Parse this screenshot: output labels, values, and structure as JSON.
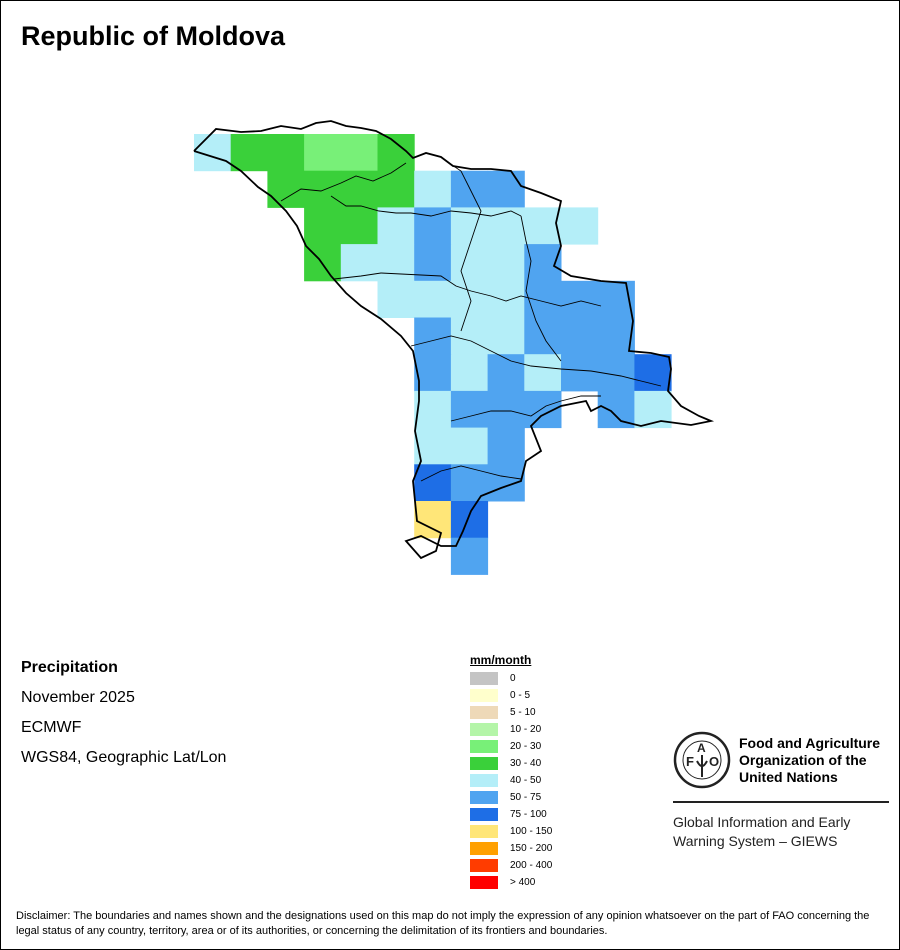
{
  "title": "Republic of Moldova",
  "info": {
    "variable": "Precipitation",
    "period": "November 2025",
    "source": "ECMWF",
    "projection": "WGS84, Geographic Lat/Lon"
  },
  "legend": {
    "title": "mm/month",
    "classes": [
      {
        "label": "0",
        "color": "#c4c4c4"
      },
      {
        "label": "0 - 5",
        "color": "#ffffcc"
      },
      {
        "label": "5 - 10",
        "color": "#eed9b8"
      },
      {
        "label": "10 - 20",
        "color": "#b4f5a8"
      },
      {
        "label": "20 - 30",
        "color": "#78f078"
      },
      {
        "label": "30 - 40",
        "color": "#3ad03a"
      },
      {
        "label": "40 - 50",
        "color": "#b4eef8"
      },
      {
        "label": "50 - 75",
        "color": "#50a4f0"
      },
      {
        "label": "75 - 100",
        "color": "#1e6ee6"
      },
      {
        "label": "100 - 150",
        "color": "#ffe678"
      },
      {
        "label": "150 - 200",
        "color": "#ffa000"
      },
      {
        "label": "200 - 400",
        "color": "#ff3c00"
      },
      {
        "label": "> 400",
        "color": "#ff0000"
      }
    ]
  },
  "grid_classes": [
    [
      6,
      5,
      5,
      4,
      4,
      5,
      null,
      null,
      null,
      null,
      null,
      null,
      null,
      null
    ],
    [
      null,
      null,
      5,
      5,
      5,
      5,
      6,
      7,
      7,
      null,
      null,
      null,
      null,
      null
    ],
    [
      null,
      null,
      null,
      5,
      5,
      6,
      7,
      6,
      6,
      6,
      6,
      null,
      null,
      null
    ],
    [
      null,
      null,
      null,
      5,
      6,
      6,
      7,
      6,
      6,
      7,
      null,
      null,
      null,
      null
    ],
    [
      null,
      null,
      null,
      null,
      null,
      6,
      6,
      6,
      6,
      7,
      7,
      7,
      null,
      null
    ],
    [
      null,
      null,
      null,
      null,
      null,
      null,
      7,
      6,
      6,
      7,
      7,
      7,
      null,
      null
    ],
    [
      null,
      null,
      null,
      null,
      null,
      null,
      7,
      6,
      7,
      6,
      7,
      7,
      8,
      null
    ],
    [
      null,
      null,
      null,
      null,
      null,
      null,
      6,
      7,
      7,
      7,
      null,
      7,
      6,
      null
    ],
    [
      null,
      null,
      null,
      null,
      null,
      null,
      6,
      6,
      7,
      null,
      null,
      null,
      null,
      null
    ],
    [
      null,
      null,
      null,
      null,
      null,
      null,
      8,
      7,
      7,
      null,
      null,
      null,
      null,
      null
    ],
    [
      null,
      null,
      null,
      null,
      null,
      null,
      9,
      8,
      null,
      null,
      null,
      null,
      null,
      null
    ],
    [
      null,
      null,
      null,
      null,
      null,
      null,
      null,
      7,
      null,
      null,
      null,
      null,
      null,
      null
    ]
  ],
  "logo": {
    "org_line1": "Food and Agriculture",
    "org_line2": "Organization of the",
    "org_line3": "United Nations",
    "emblem_text": "FAO FIAT PANIS",
    "giews_line1": "Global Information and Early",
    "giews_line2": "Warning System – GIEWS"
  },
  "disclaimer": "Disclaimer: The boundaries and names shown and the designations used on this map do not imply the expression of any opinion whatsoever on the part of FAO concerning the legal status of any country, territory, area or of its authorities, or concerning the delimitation of its frontiers and boundaries."
}
